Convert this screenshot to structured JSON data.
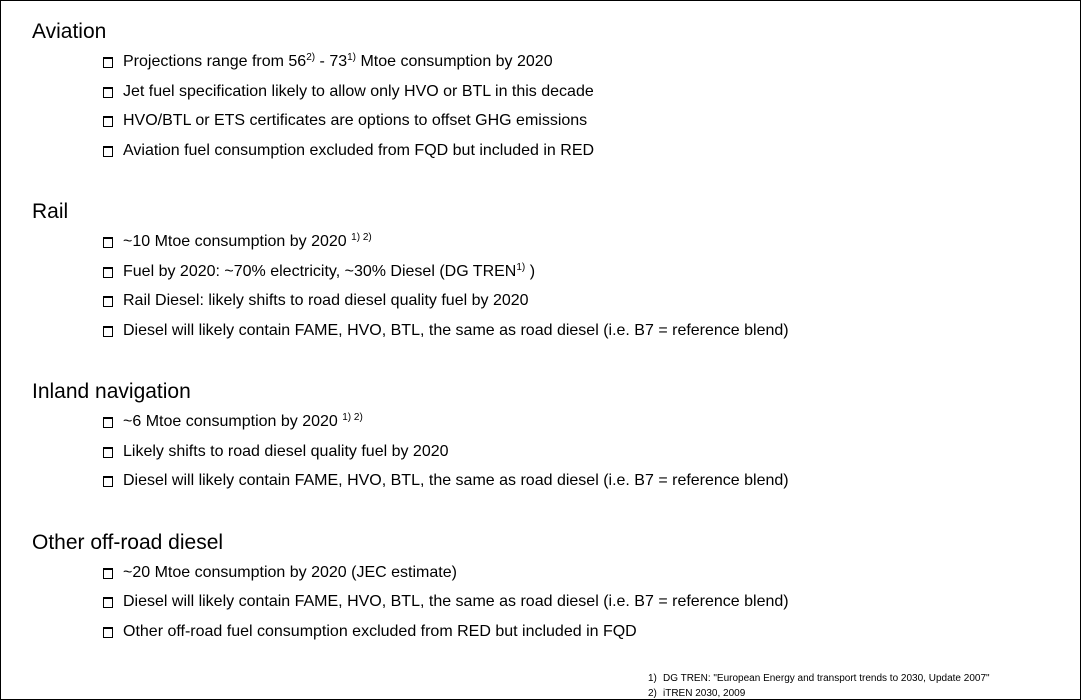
{
  "sections": [
    {
      "heading": "Aviation",
      "bullets": [
        [
          "Projections range from 56",
          {
            "sup": "2)"
          },
          " - 73",
          {
            "sup": "1)"
          },
          " Mtoe consumption by 2020"
        ],
        [
          "Jet fuel specification likely to allow only HVO or BTL in this decade"
        ],
        [
          "HVO/BTL or ETS certificates are options to offset GHG emissions"
        ],
        [
          "Aviation fuel consumption excluded from FQD but included in RED"
        ]
      ]
    },
    {
      "heading": "Rail",
      "bullets": [
        [
          "~10 Mtoe consumption by 2020 ",
          {
            "sup": "1) 2)"
          }
        ],
        [
          "Fuel by 2020: ~70% electricity, ~30% Diesel (DG TREN",
          {
            "sup": "1)"
          },
          " )"
        ],
        [
          "Rail Diesel: likely shifts to road diesel quality fuel by 2020"
        ],
        [
          "Diesel will likely contain FAME, HVO, BTL, the same as road diesel (i.e. B7 = reference blend)"
        ]
      ]
    },
    {
      "heading": "Inland navigation",
      "bullets": [
        [
          "~6 Mtoe consumption by 2020 ",
          {
            "sup": "1) 2)"
          }
        ],
        [
          "Likely shifts to road diesel quality fuel by 2020"
        ],
        [
          "Diesel will likely contain FAME, HVO, BTL, the same as road diesel (i.e. B7 = reference blend)"
        ]
      ]
    },
    {
      "heading": "Other off-road diesel",
      "bullets": [
        [
          "~20 Mtoe consumption by 2020 (JEC estimate)"
        ],
        [
          "Diesel will likely contain FAME, HVO, BTL, the same as road diesel (i.e. B7 = reference blend)"
        ],
        [
          "Other off-road fuel consumption excluded from RED but included in FQD"
        ]
      ]
    }
  ],
  "footnotes": [
    {
      "number": "1)",
      "text": "DG TREN: \"European Energy and transport trends to 2030, Update 2007\""
    },
    {
      "number": "2)",
      "text": "iTREN 2030, 2009"
    }
  ]
}
